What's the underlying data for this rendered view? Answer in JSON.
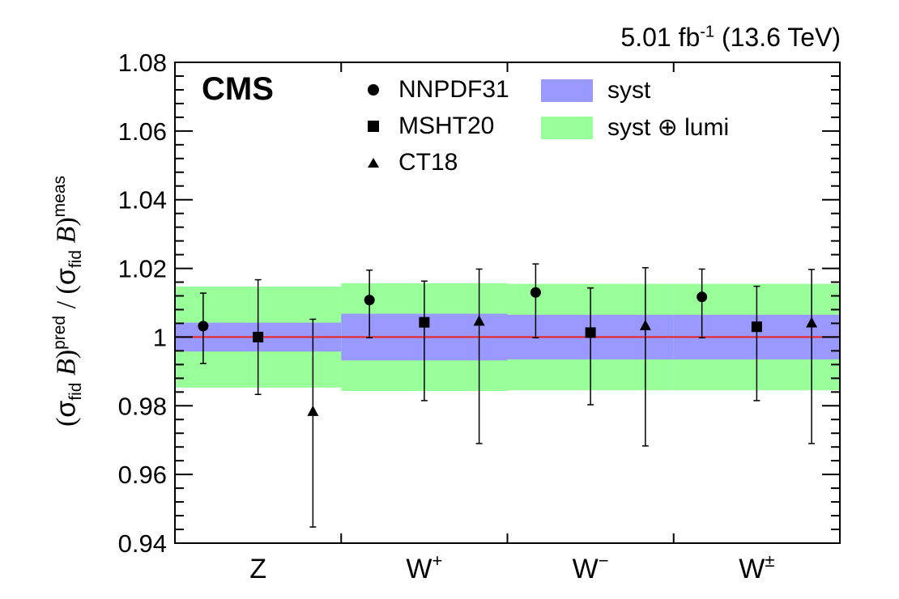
{
  "lumi_label": {
    "value": "5.01 fb",
    "exponent": "-1",
    "energy": "(13.6 TeV)"
  },
  "experiment": "CMS",
  "y_axis_title": {
    "sigma": "σ",
    "fid": "fid",
    "B": "B",
    "pred": "pred",
    "meas": "meas"
  },
  "legend": {
    "entries": [
      {
        "label": "NNPDF31",
        "marker": "circle"
      },
      {
        "label": "MSHT20",
        "marker": "square"
      },
      {
        "label": "CT18",
        "marker": "triangle"
      }
    ],
    "bands": [
      {
        "label": "syst",
        "color": "#9999ff"
      },
      {
        "label": "syst ⊕ lumi",
        "color": "#99ff99"
      }
    ]
  },
  "chart_data": {
    "type": "scatter",
    "categories": [
      "Z",
      "W+",
      "W−",
      "W±"
    ],
    "category_labels": [
      {
        "base": "Z",
        "sup": ""
      },
      {
        "base": "W",
        "sup": "+"
      },
      {
        "base": "W",
        "sup": "−"
      },
      {
        "base": "W",
        "sup": "±"
      }
    ],
    "ylim": [
      0.94,
      1.08
    ],
    "yticks": [
      "0.94",
      "0.96",
      "0.98",
      "1",
      "1.02",
      "1.04",
      "1.06",
      "1.08"
    ],
    "reference_line": {
      "y": 1.0,
      "color": "#ee2222"
    },
    "bands": {
      "syst": {
        "color": "#9999ff",
        "low": [
          0.9958,
          0.9932,
          0.9935,
          0.9935
        ],
        "high": [
          1.0042,
          1.0068,
          1.0065,
          1.0065
        ]
      },
      "syst_lumi": {
        "color": "#99ff99",
        "low": [
          0.9853,
          0.9843,
          0.9845,
          0.9845
        ],
        "high": [
          1.0147,
          1.0157,
          1.0155,
          1.0155
        ]
      }
    },
    "series": [
      {
        "name": "NNPDF31",
        "marker": "circle",
        "values": [
          1.0032,
          1.0108,
          1.013,
          1.0117
        ],
        "err_low": [
          0.9923,
          0.9998,
          0.9998,
          0.9998
        ],
        "err_high": [
          1.0128,
          1.0195,
          1.0213,
          1.0198
        ]
      },
      {
        "name": "MSHT20",
        "marker": "square",
        "values": [
          1.0,
          1.0043,
          1.0013,
          1.003
        ],
        "err_low": [
          0.9833,
          0.9815,
          0.9803,
          0.9815
        ],
        "err_high": [
          1.0167,
          1.0163,
          1.0143,
          1.0148
        ]
      },
      {
        "name": "CT18",
        "marker": "triangle",
        "values": [
          0.9782,
          1.0045,
          1.0032,
          1.004
        ],
        "err_low": [
          0.9447,
          0.969,
          0.9683,
          0.969
        ],
        "err_high": [
          1.0052,
          1.0198,
          1.0202,
          1.0197
        ]
      }
    ]
  }
}
